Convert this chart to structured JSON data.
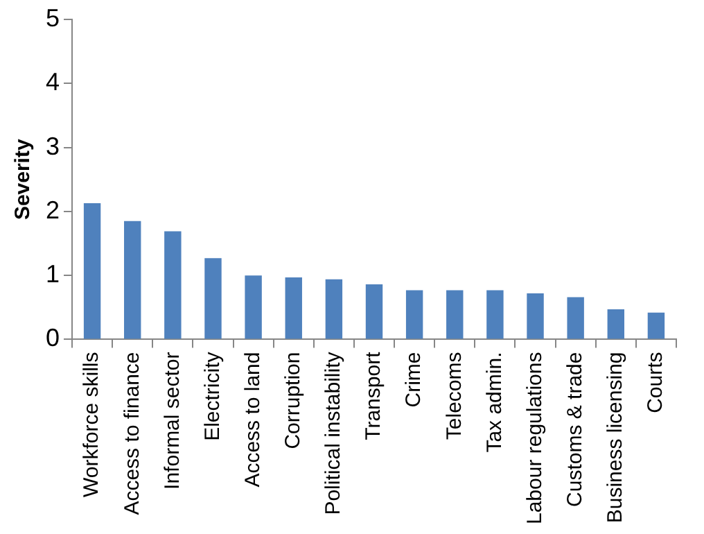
{
  "chart_data": {
    "type": "bar",
    "ylabel": "Severity",
    "categories": [
      "Workforce skills",
      "Access to finance",
      "Informal sector",
      "Electricity",
      "Access to land",
      "Corruption",
      "Political instability",
      "Transport",
      "Crime",
      "Telecoms",
      "Tax admin.",
      "Labour regulations",
      "Customs & trade",
      "Business licensing",
      "Courts"
    ],
    "values": [
      2.13,
      1.85,
      1.69,
      1.27,
      1.0,
      0.97,
      0.94,
      0.86,
      0.77,
      0.77,
      0.77,
      0.72,
      0.66,
      0.47,
      0.42
    ],
    "color": "#4f81bd",
    "ylim": [
      0,
      5
    ],
    "yticks": [
      0,
      1,
      2,
      3,
      4,
      5
    ],
    "grid": false,
    "legend": false
  }
}
